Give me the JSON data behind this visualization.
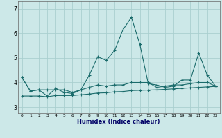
{
  "xlabel": "Humidex (Indice chaleur)",
  "background_color": "#cce8e8",
  "grid_color": "#aacfcf",
  "line_color": "#1a6b6b",
  "xlim": [
    -0.5,
    23.5
  ],
  "ylim": [
    2.75,
    7.3
  ],
  "yticks": [
    3,
    4,
    5,
    6,
    7
  ],
  "xticks": [
    0,
    1,
    2,
    3,
    4,
    5,
    6,
    7,
    8,
    9,
    10,
    11,
    12,
    13,
    14,
    15,
    16,
    17,
    18,
    19,
    20,
    21,
    22,
    23
  ],
  "series": [
    [
      4.2,
      3.65,
      3.7,
      3.45,
      3.75,
      3.6,
      3.55,
      3.7,
      4.3,
      5.05,
      4.9,
      5.3,
      6.15,
      6.65,
      5.55,
      3.95,
      3.9,
      3.8,
      3.85,
      4.1,
      4.1,
      5.2,
      4.3,
      3.85
    ],
    [
      4.2,
      3.65,
      3.7,
      3.7,
      3.7,
      3.7,
      3.6,
      3.7,
      3.8,
      3.9,
      3.85,
      3.9,
      3.9,
      4.0,
      4.0,
      4.0,
      3.8,
      3.85,
      3.9,
      3.9,
      3.95,
      4.0,
      4.0,
      3.85
    ],
    [
      3.45,
      3.45,
      3.45,
      3.42,
      3.47,
      3.47,
      3.47,
      3.5,
      3.53,
      3.57,
      3.58,
      3.62,
      3.63,
      3.67,
      3.68,
      3.69,
      3.7,
      3.72,
      3.74,
      3.76,
      3.78,
      3.8,
      3.82,
      3.84
    ]
  ]
}
